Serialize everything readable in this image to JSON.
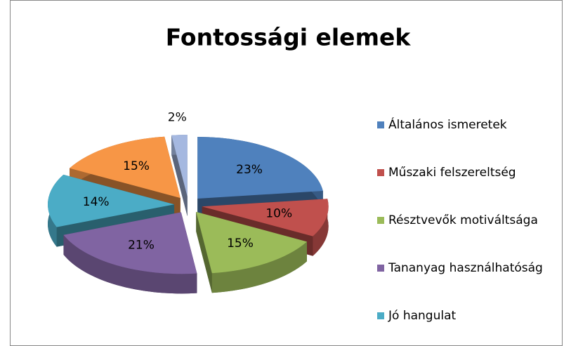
{
  "chart_data": {
    "type": "pie3d",
    "title": "Fontossági elemek",
    "categories": [
      "Általános ismeretek",
      "Műszaki felszereltség",
      "Résztvevők motiváltsága",
      "Tananyag használhatóság",
      "Jó hangulat",
      null,
      null
    ],
    "values": [
      23,
      10,
      15,
      21,
      14,
      15,
      2
    ],
    "colors": [
      "#4f81bd",
      "#c0504d",
      "#9bbb59",
      "#8064a2",
      "#4bacc6",
      "#f79646",
      "#a5b8e0"
    ],
    "legend": "right"
  }
}
